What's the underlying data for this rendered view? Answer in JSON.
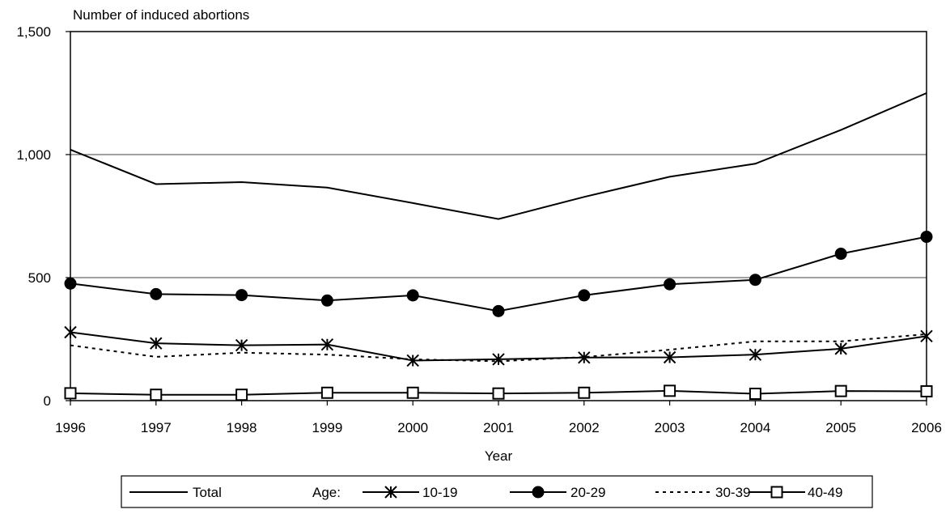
{
  "chart_data": {
    "type": "line",
    "ylabel": "Number of induced abortions",
    "xlabel": "Year",
    "x": [
      "1996",
      "1997",
      "1998",
      "1999",
      "2000",
      "2001",
      "2002",
      "2003",
      "2004",
      "2005",
      "2006"
    ],
    "ylim": [
      0,
      1500
    ],
    "yticks": [
      0,
      500,
      1000,
      1500
    ],
    "ytick_labels": [
      "0",
      "500",
      "1,000",
      "1,500"
    ],
    "gridlines": "horizontal at 500 and 1,000",
    "legend_placement": "bottom",
    "legend_age_label": "Age:",
    "series": [
      {
        "name": "Total",
        "marker": "none",
        "dash": "solid",
        "values": [
          1020,
          880,
          888,
          866,
          803,
          738,
          828,
          910,
          963,
          1100,
          1250
        ]
      },
      {
        "name": "10-19",
        "marker": "asterisk",
        "dash": "solid",
        "values": [
          278,
          233,
          225,
          228,
          163,
          168,
          175,
          176,
          187,
          211,
          262
        ]
      },
      {
        "name": "20-29",
        "marker": "filled-circle",
        "dash": "solid",
        "values": [
          476,
          433,
          429,
          407,
          428,
          364,
          428,
          473,
          491,
          597,
          666
        ]
      },
      {
        "name": "30-39",
        "marker": "none",
        "dash": "dotted",
        "values": [
          225,
          178,
          195,
          187,
          168,
          160,
          177,
          207,
          241,
          241,
          270
        ]
      },
      {
        "name": "40-49",
        "marker": "open-square",
        "dash": "solid",
        "values": [
          30,
          24,
          24,
          32,
          32,
          29,
          32,
          40,
          28,
          39,
          38
        ]
      }
    ]
  }
}
